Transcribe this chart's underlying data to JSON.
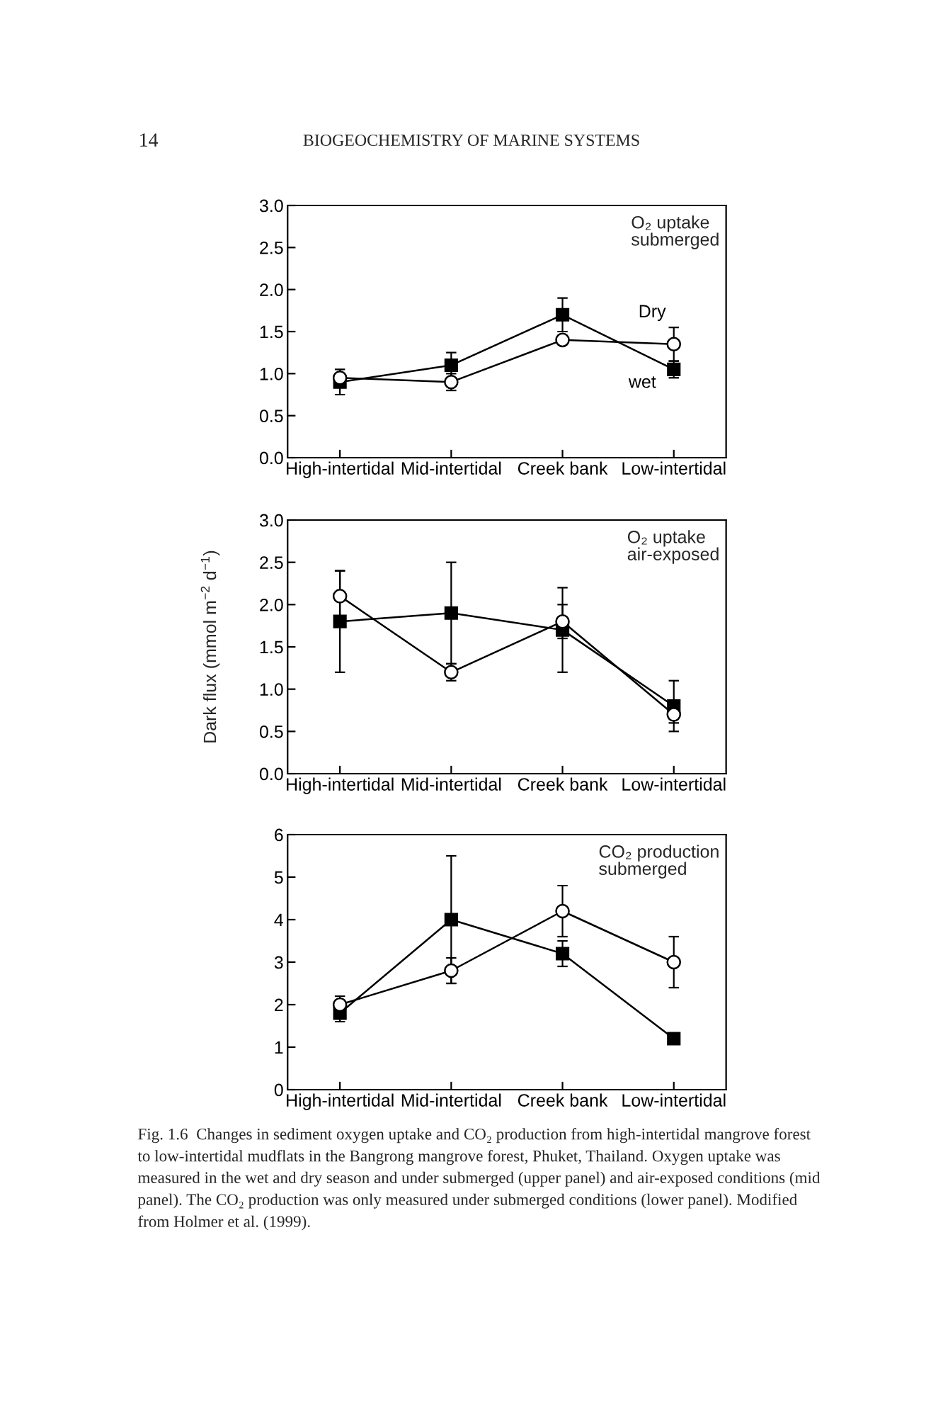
{
  "chart_data": [
    {
      "type": "line",
      "categories": [
        "High-intertidal",
        "Mid-intertidal",
        "Creek bank",
        "Low-intertidal"
      ],
      "series": [
        {
          "name": "wet",
          "color": "#000000",
          "marker": "square",
          "values": [
            0.9,
            1.1,
            1.7,
            1.05
          ],
          "errors": [
            0.15,
            0.15,
            0.2,
            0.1
          ]
        },
        {
          "name": "Dry",
          "color": "#000000",
          "marker": "circle",
          "values": [
            0.95,
            0.9,
            1.4,
            1.35
          ],
          "errors": [
            null,
            0.1,
            null,
            0.2
          ]
        }
      ],
      "ylim": [
        0,
        3
      ],
      "yticks": [
        {
          "value": 0,
          "label": "0.0"
        },
        0.5,
        {
          "value": 1,
          "label": "1.0"
        },
        1.5,
        {
          "value": 2,
          "label": "2.0"
        },
        2.5,
        {
          "value": 3,
          "label": "3.0"
        }
      ],
      "line_style": "solid",
      "annotations": [
        "O₂ uptake\nsubmerged",
        "14",
        "BIOGEOCHEMISTRY OF MARINE SYSTEMS"
      ]
    },
    {
      "type": "line",
      "categories": [
        "High-intertidal",
        "Mid-intertidal",
        "Creek bank",
        "Low-intertidal"
      ],
      "series": [
        {
          "color": "#000000",
          "marker": "square",
          "values": [
            1.8,
            1.9,
            1.7,
            0.8
          ],
          "errors": [
            0.6,
            0.6,
            0.5,
            0.3
          ]
        },
        {
          "color": "#000000",
          "marker": "circle",
          "values": [
            2.1,
            1.2,
            1.8,
            0.7
          ],
          "errors": [
            0.3,
            0.1,
            0.2,
            0.1
          ]
        }
      ],
      "ylim": [
        0,
        3
      ],
      "yticks": [
        {
          "value": 0,
          "label": "0.0"
        },
        0.5,
        {
          "value": 1,
          "label": "1.0"
        },
        1.5,
        {
          "value": 2,
          "label": "2.0"
        },
        2.5,
        {
          "value": 3,
          "label": "3.0"
        }
      ],
      "ylabel": "Dark flux (mmol m$^{−2}$ d$^{−1}$)",
      "line_style": "solid",
      "annotations": [
        "O₂ uptake\nair-exposed"
      ]
    },
    {
      "type": "line",
      "categories": [
        "High-intertidal",
        "Mid-intertidal",
        "Creek bank",
        "Low-intertidal"
      ],
      "series": [
        {
          "color": "#000000",
          "marker": "square",
          "values": [
            1.8,
            4.0,
            3.2,
            1.2
          ],
          "errors": [
            0.2,
            1.5,
            0.3,
            null
          ]
        },
        {
          "color": "#000000",
          "marker": "circle",
          "values": [
            2.0,
            2.8,
            4.2,
            3.0
          ],
          "errors": [
            0.2,
            0.3,
            0.6,
            0.6
          ]
        }
      ],
      "ylim": [
        0,
        6
      ],
      "yticks": [
        0,
        1,
        2,
        3,
        4,
        5,
        6
      ],
      "line_style": "solid",
      "annotations": [
        "CO₂ production\nsubmerged",
        "Fig. 1.6  Changes in sediment oxygen uptake and CO₂ production from high-intertidal mangrove forest\nto low-intertidal mudflats in the Bangrong mangrove forest, Phuket, Thailand. Oxygen uptake was\nmeasured in the wet and dry season and under submerged (upper panel) and air-exposed conditions (mid\npanel). The CO₂ production was only measured under submerged conditions (lower panel). Modified\nfrom Holmer et al. (1999)."
      ]
    }
  ]
}
